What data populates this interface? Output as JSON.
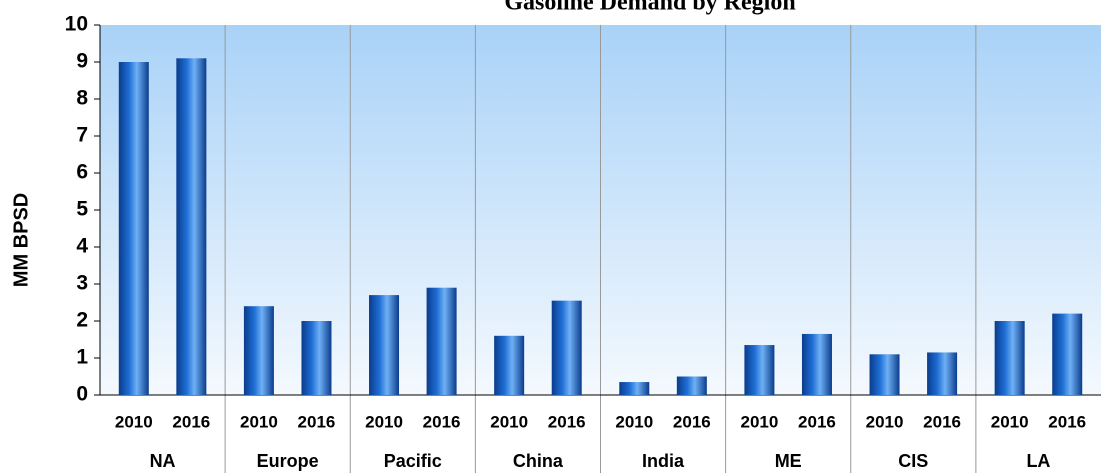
{
  "chart_data": {
    "type": "bar",
    "title": "Gasoline Demand by Region",
    "ylabel": "MM BPSD",
    "categories": [
      "NA",
      "Europe",
      "Pacific",
      "China",
      "India",
      "ME",
      "CIS",
      "LA"
    ],
    "series": [
      {
        "name": "2010",
        "color": "#1f6fd6",
        "values": [
          9.0,
          2.4,
          2.7,
          1.6,
          0.35,
          1.35,
          1.1,
          2.0
        ]
      },
      {
        "name": "2016",
        "color": "#1f6fd6",
        "values": [
          9.1,
          2.0,
          2.9,
          2.55,
          0.5,
          1.65,
          1.15,
          2.2
        ]
      }
    ],
    "ylim": [
      0,
      10
    ],
    "yticks": [
      0,
      1,
      2,
      3,
      4,
      5,
      6,
      7,
      8,
      9,
      10
    ],
    "grid": false
  }
}
